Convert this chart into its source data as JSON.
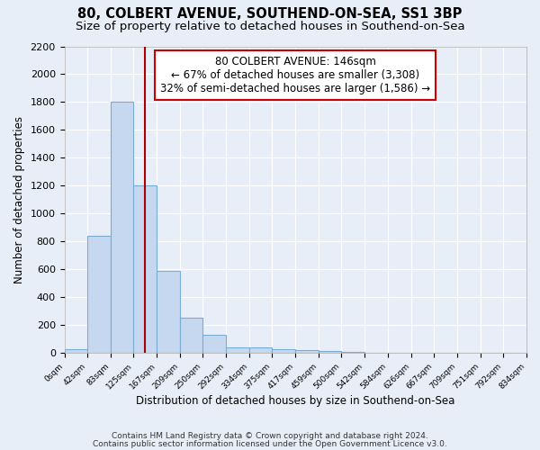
{
  "title1": "80, COLBERT AVENUE, SOUTHEND-ON-SEA, SS1 3BP",
  "title2": "Size of property relative to detached houses in Southend-on-Sea",
  "xlabel": "Distribution of detached houses by size in Southend-on-Sea",
  "ylabel": "Number of detached properties",
  "footnote1": "Contains HM Land Registry data © Crown copyright and database right 2024.",
  "footnote2": "Contains public sector information licensed under the Open Government Licence v3.0.",
  "bin_edges": [
    0,
    42,
    83,
    125,
    167,
    209,
    250,
    292,
    334,
    375,
    417,
    459,
    500,
    542,
    584,
    626,
    667,
    709,
    751,
    792,
    834
  ],
  "bar_heights": [
    25,
    840,
    1800,
    1200,
    590,
    255,
    130,
    40,
    40,
    25,
    20,
    15,
    5,
    3,
    2,
    2,
    2,
    1,
    1,
    1
  ],
  "bar_color": "#c5d8f0",
  "bar_edge_color": "#7aadd4",
  "property_size": 146,
  "vline_color": "#aa0000",
  "annotation_line1": "80 COLBERT AVENUE: 146sqm",
  "annotation_line2": "← 67% of detached houses are smaller (3,308)",
  "annotation_line3": "32% of semi-detached houses are larger (1,586) →",
  "annotation_box_color": "#ffffff",
  "annotation_border_color": "#cc0000",
  "ylim": [
    0,
    2200
  ],
  "yticks": [
    0,
    200,
    400,
    600,
    800,
    1000,
    1200,
    1400,
    1600,
    1800,
    2000,
    2200
  ],
  "background_color": "#e8eef8",
  "grid_color": "#ffffff",
  "title1_fontsize": 10.5,
  "title2_fontsize": 9.5,
  "annotation_fontsize": 8.5,
  "axis_fontsize": 8,
  "footnote_fontsize": 6.5
}
